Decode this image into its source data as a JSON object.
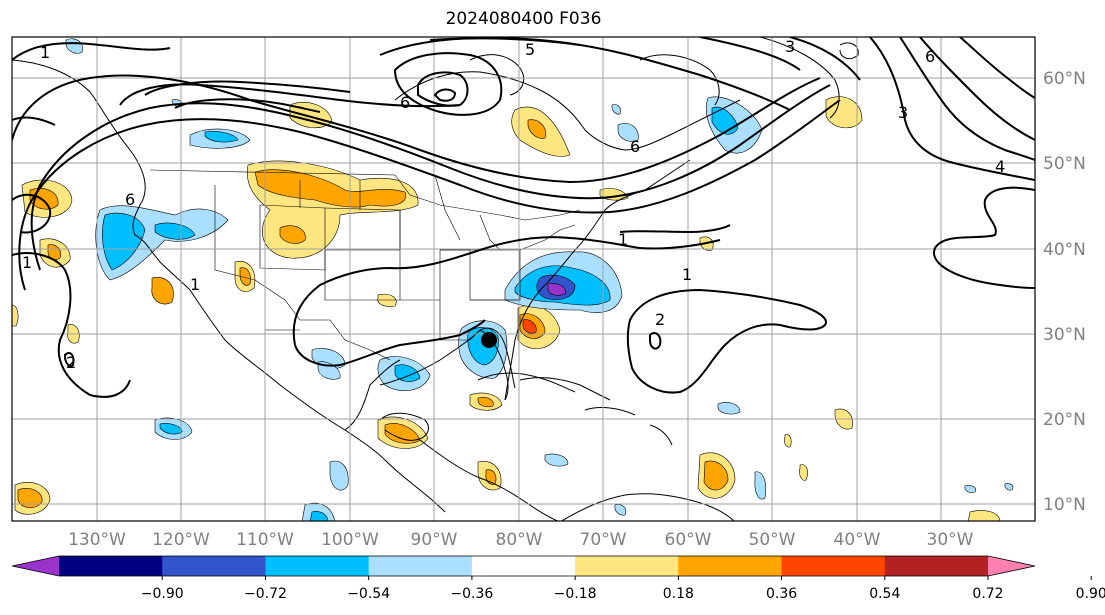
{
  "title": "2024080400 F036",
  "map": {
    "lon_labels": [
      "130°W",
      "120°W",
      "110°W",
      "100°W",
      "90°W",
      "80°W",
      "70°W",
      "60°W",
      "50°W",
      "40°W",
      "30°W"
    ],
    "lat_labels": [
      "60°N",
      "50°N",
      "40°N",
      "30°N",
      "20°N",
      "10°N"
    ],
    "contour_labels": [
      "1",
      "1",
      "1",
      "1",
      "1",
      "2",
      "2",
      "3",
      "3",
      "4",
      "5",
      "6",
      "6",
      "6",
      "6"
    ],
    "storm_marker": "storm-center"
  },
  "colorbar": {
    "ticks": [
      "−0.90",
      "−0.72",
      "−0.54",
      "−0.36",
      "−0.18",
      "0.18",
      "0.36",
      "0.54",
      "0.72",
      "0.90"
    ],
    "colors": [
      "#9933cc",
      "#000080",
      "#3355cc",
      "#00bfff",
      "#aadfff",
      "#ffffff",
      "#ffe680",
      "#ffa500",
      "#ff4500",
      "#b22222",
      "#ff80b0"
    ]
  }
}
